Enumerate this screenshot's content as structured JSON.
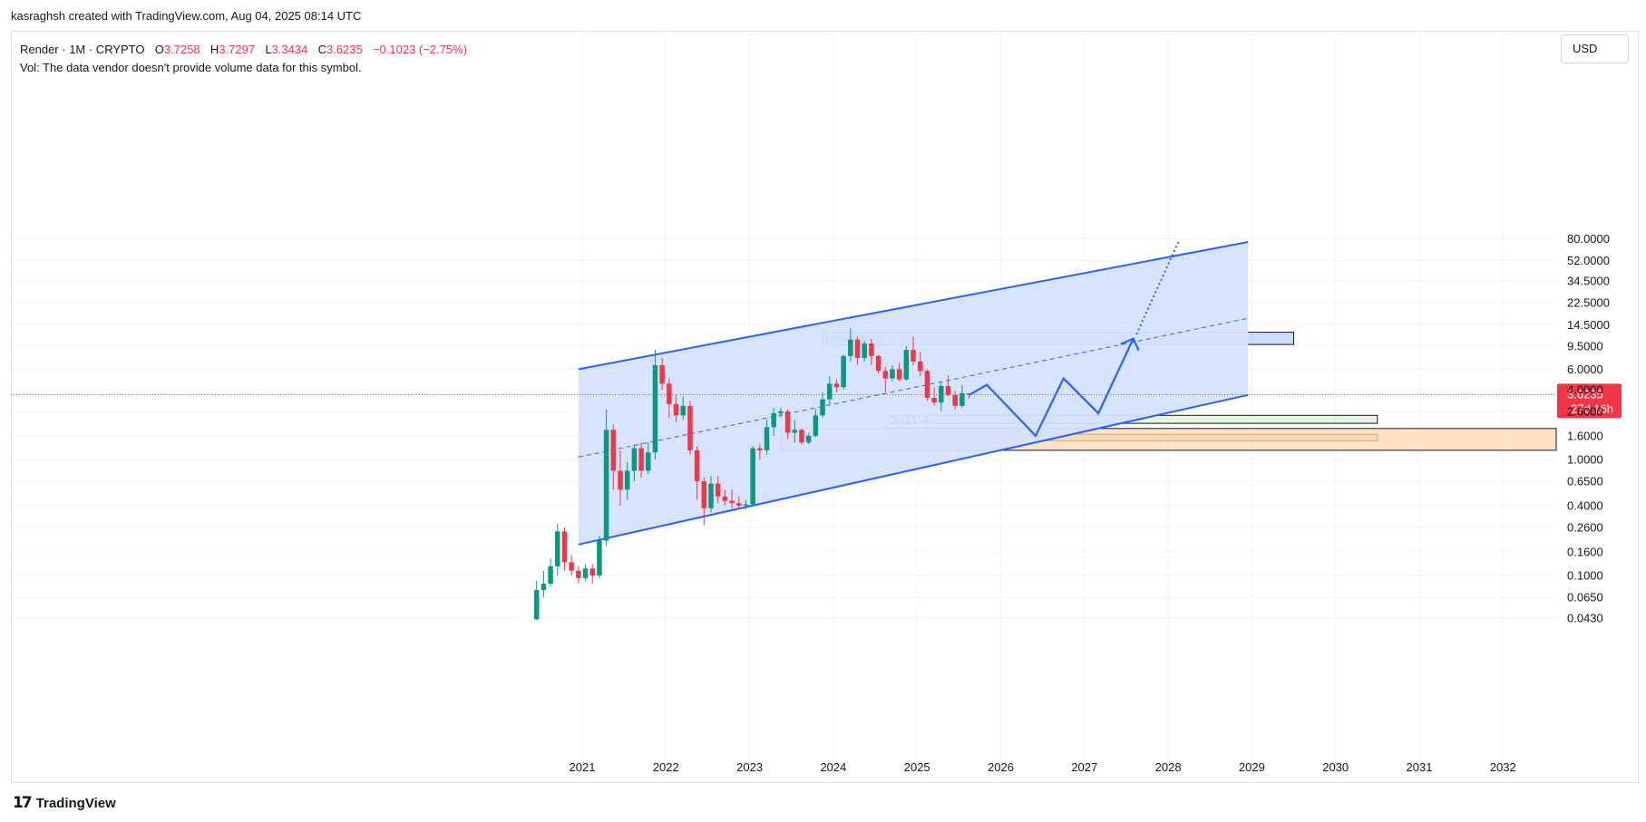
{
  "header": {
    "credit": "kasraghsh created with TradingView.com, Aug 04, 2025 08:14 UTC"
  },
  "legend": {
    "symbol": "Render · 1M · CRYPTO",
    "o_label": "O",
    "o_value": "3.7258",
    "h_label": "H",
    "h_value": "3.7297",
    "l_label": "L",
    "l_value": "3.3434",
    "c_label": "C",
    "c_value": "3.6235",
    "change": "−0.1023 (−2.75%)",
    "vol": "Vol: The data vendor doesn't provide volume data for this symbol."
  },
  "currency": "USD",
  "footer": {
    "brand": "TradingView",
    "logo_icon": "tradingview-logo-icon"
  },
  "colors": {
    "up": "#089981",
    "down": "#f23645",
    "channel": "#2962ff",
    "channel_fill": "#d6e2fd",
    "price_tag": "#f23645"
  },
  "chart_data": {
    "type": "candlestick",
    "scale": "log",
    "ylim": [
      0.035,
      100
    ],
    "xlim": [
      "2020-01",
      "2032-12"
    ],
    "y_ticks": [
      "80.0000",
      "52.0000",
      "34.5000",
      "22.5000",
      "14.5000",
      "9.5000",
      "6.0000",
      "4.0000",
      "2.6000",
      "1.6000",
      "1.0000",
      "0.6500",
      "0.4000",
      "0.2600",
      "0.1600",
      "0.1000",
      "0.0650",
      "0.0430"
    ],
    "x_ticks": [
      "2021",
      "2022",
      "2023",
      "2024",
      "2025",
      "2026",
      "2027",
      "2028",
      "2029",
      "2030",
      "2031",
      "2032"
    ],
    "last_price": {
      "value": "3.6235",
      "countdown": "27d 16h"
    },
    "candles": [
      {
        "t": "2020-06",
        "o": 0.042,
        "h": 0.09,
        "l": 0.041,
        "c": 0.075
      },
      {
        "t": "2020-07",
        "o": 0.075,
        "h": 0.11,
        "l": 0.065,
        "c": 0.085
      },
      {
        "t": "2020-08",
        "o": 0.085,
        "h": 0.14,
        "l": 0.08,
        "c": 0.12
      },
      {
        "t": "2020-09",
        "o": 0.12,
        "h": 0.28,
        "l": 0.1,
        "c": 0.24
      },
      {
        "t": "2020-10",
        "o": 0.24,
        "h": 0.26,
        "l": 0.11,
        "c": 0.13
      },
      {
        "t": "2020-11",
        "o": 0.13,
        "h": 0.15,
        "l": 0.1,
        "c": 0.11
      },
      {
        "t": "2020-12",
        "o": 0.11,
        "h": 0.12,
        "l": 0.085,
        "c": 0.095
      },
      {
        "t": "2021-01",
        "o": 0.095,
        "h": 0.125,
        "l": 0.09,
        "c": 0.115
      },
      {
        "t": "2021-02",
        "o": 0.115,
        "h": 0.125,
        "l": 0.085,
        "c": 0.1
      },
      {
        "t": "2021-03",
        "o": 0.1,
        "h": 0.22,
        "l": 0.095,
        "c": 0.2
      },
      {
        "t": "2021-04",
        "o": 0.2,
        "h": 2.7,
        "l": 0.18,
        "c": 1.8
      },
      {
        "t": "2021-05",
        "o": 1.8,
        "h": 2.0,
        "l": 0.55,
        "c": 0.8
      },
      {
        "t": "2021-06",
        "o": 0.8,
        "h": 1.2,
        "l": 0.4,
        "c": 0.55
      },
      {
        "t": "2021-07",
        "o": 0.55,
        "h": 0.95,
        "l": 0.45,
        "c": 0.8
      },
      {
        "t": "2021-08",
        "o": 0.8,
        "h": 1.35,
        "l": 0.65,
        "c": 1.25
      },
      {
        "t": "2021-09",
        "o": 1.25,
        "h": 1.4,
        "l": 0.7,
        "c": 0.8
      },
      {
        "t": "2021-10",
        "o": 0.8,
        "h": 1.4,
        "l": 0.75,
        "c": 1.15
      },
      {
        "t": "2021-11",
        "o": 1.15,
        "h": 8.8,
        "l": 1.0,
        "c": 6.5
      },
      {
        "t": "2021-12",
        "o": 6.5,
        "h": 7.5,
        "l": 4.0,
        "c": 4.5
      },
      {
        "t": "2022-01",
        "o": 4.5,
        "h": 5.0,
        "l": 2.3,
        "c": 3.0
      },
      {
        "t": "2022-02",
        "o": 3.0,
        "h": 3.6,
        "l": 2.1,
        "c": 2.4
      },
      {
        "t": "2022-03",
        "o": 2.4,
        "h": 3.5,
        "l": 2.2,
        "c": 2.9
      },
      {
        "t": "2022-04",
        "o": 2.9,
        "h": 3.2,
        "l": 1.1,
        "c": 1.2
      },
      {
        "t": "2022-05",
        "o": 1.2,
        "h": 1.3,
        "l": 0.45,
        "c": 0.65
      },
      {
        "t": "2022-06",
        "o": 0.65,
        "h": 0.7,
        "l": 0.27,
        "c": 0.38
      },
      {
        "t": "2022-07",
        "o": 0.38,
        "h": 0.72,
        "l": 0.35,
        "c": 0.62
      },
      {
        "t": "2022-08",
        "o": 0.62,
        "h": 0.72,
        "l": 0.42,
        "c": 0.48
      },
      {
        "t": "2022-09",
        "o": 0.48,
        "h": 0.55,
        "l": 0.4,
        "c": 0.44
      },
      {
        "t": "2022-10",
        "o": 0.44,
        "h": 0.55,
        "l": 0.38,
        "c": 0.42
      },
      {
        "t": "2022-11",
        "o": 0.42,
        "h": 0.48,
        "l": 0.37,
        "c": 0.4
      },
      {
        "t": "2022-12",
        "o": 0.4,
        "h": 0.45,
        "l": 0.37,
        "c": 0.41
      },
      {
        "t": "2023-01",
        "o": 0.41,
        "h": 1.3,
        "l": 0.39,
        "c": 1.25
      },
      {
        "t": "2023-02",
        "o": 1.25,
        "h": 1.35,
        "l": 1.0,
        "c": 1.2
      },
      {
        "t": "2023-03",
        "o": 1.2,
        "h": 2.2,
        "l": 1.1,
        "c": 1.9
      },
      {
        "t": "2023-04",
        "o": 1.9,
        "h": 2.8,
        "l": 1.6,
        "c": 2.5
      },
      {
        "t": "2023-05",
        "o": 2.5,
        "h": 2.8,
        "l": 2.3,
        "c": 2.6
      },
      {
        "t": "2023-06",
        "o": 2.6,
        "h": 2.7,
        "l": 1.5,
        "c": 1.7
      },
      {
        "t": "2023-07",
        "o": 1.7,
        "h": 2.2,
        "l": 1.4,
        "c": 1.8
      },
      {
        "t": "2023-08",
        "o": 1.8,
        "h": 1.85,
        "l": 1.35,
        "c": 1.4
      },
      {
        "t": "2023-09",
        "o": 1.4,
        "h": 1.7,
        "l": 1.35,
        "c": 1.6
      },
      {
        "t": "2023-10",
        "o": 1.6,
        "h": 2.7,
        "l": 1.55,
        "c": 2.4
      },
      {
        "t": "2023-11",
        "o": 2.4,
        "h": 3.8,
        "l": 2.3,
        "c": 3.3
      },
      {
        "t": "2023-12",
        "o": 3.3,
        "h": 5.2,
        "l": 3.0,
        "c": 4.5
      },
      {
        "t": "2024-01",
        "o": 4.5,
        "h": 4.9,
        "l": 3.8,
        "c": 4.2
      },
      {
        "t": "2024-02",
        "o": 4.2,
        "h": 8.0,
        "l": 4.0,
        "c": 7.8
      },
      {
        "t": "2024-03",
        "o": 7.8,
        "h": 13.5,
        "l": 7.0,
        "c": 10.8
      },
      {
        "t": "2024-04",
        "o": 10.8,
        "h": 11.5,
        "l": 6.5,
        "c": 7.5
      },
      {
        "t": "2024-05",
        "o": 7.5,
        "h": 10.5,
        "l": 7.0,
        "c": 10.0
      },
      {
        "t": "2024-06",
        "o": 10.0,
        "h": 11.0,
        "l": 6.5,
        "c": 7.8
      },
      {
        "t": "2024-07",
        "o": 7.8,
        "h": 8.0,
        "l": 5.5,
        "c": 5.8
      },
      {
        "t": "2024-08",
        "o": 5.8,
        "h": 6.3,
        "l": 3.8,
        "c": 5.0
      },
      {
        "t": "2024-09",
        "o": 5.0,
        "h": 6.5,
        "l": 4.7,
        "c": 6.0
      },
      {
        "t": "2024-10",
        "o": 6.0,
        "h": 6.8,
        "l": 4.7,
        "c": 4.9
      },
      {
        "t": "2024-11",
        "o": 4.9,
        "h": 9.5,
        "l": 4.8,
        "c": 8.8
      },
      {
        "t": "2024-12",
        "o": 8.8,
        "h": 11.5,
        "l": 6.5,
        "c": 7.0
      },
      {
        "t": "2025-01",
        "o": 7.0,
        "h": 8.5,
        "l": 5.2,
        "c": 5.8
      },
      {
        "t": "2025-02",
        "o": 5.8,
        "h": 6.0,
        "l": 3.2,
        "c": 3.4
      },
      {
        "t": "2025-03",
        "o": 3.4,
        "h": 4.2,
        "l": 2.9,
        "c": 3.1
      },
      {
        "t": "2025-04",
        "o": 3.1,
        "h": 4.6,
        "l": 2.6,
        "c": 4.3
      },
      {
        "t": "2025-05",
        "o": 4.3,
        "h": 5.3,
        "l": 3.5,
        "c": 3.6
      },
      {
        "t": "2025-06",
        "o": 3.6,
        "h": 3.9,
        "l": 2.7,
        "c": 2.9
      },
      {
        "t": "2025-07",
        "o": 2.9,
        "h": 4.4,
        "l": 2.8,
        "c": 3.73
      },
      {
        "t": "2025-08",
        "o": 3.7258,
        "h": 3.7297,
        "l": 3.3434,
        "c": 3.6235
      }
    ],
    "annotations": {
      "channel": {
        "upper": [
          [
            "2020-12-15",
            6.0
          ],
          [
            "2028-12-15",
            75.0
          ]
        ],
        "lower": [
          [
            "2020-12-15",
            0.185
          ],
          [
            "2028-12-15",
            3.6
          ]
        ],
        "median": [
          [
            "2020-12-15",
            1.05
          ],
          [
            "2028-12-15",
            16.5
          ]
        ]
      },
      "boxes": [
        {
          "label": "Mansha",
          "from": "2023-11-15",
          "to": "2029-07-01",
          "top": 12.5,
          "bottom": 9.8,
          "fill": "#bbd0fb"
        },
        {
          "label": "STEP 4",
          "from": "2024-09-01",
          "to": "2030-07-01",
          "top": 2.4,
          "bottom": 2.05,
          "fill": "#e3f0dc"
        },
        {
          "label": "STEP 5",
          "from": "2024-09-01",
          "to": "2030-07-01",
          "top": 1.65,
          "bottom": 1.45,
          "fill": "#dcc9a6"
        },
        {
          "label": "",
          "from": "2023-05-15",
          "to": "2032-12-31",
          "top": 1.85,
          "bottom": 1.2,
          "fill": "#fdd9b0"
        }
      ],
      "projection": [
        [
          "2025-08-15",
          3.6
        ],
        [
          "2025-11-01",
          4.4
        ],
        [
          "2026-06-01",
          1.6
        ],
        [
          "2026-10-01",
          5.0
        ],
        [
          "2027-03-01",
          2.5
        ],
        [
          "2027-08-01",
          11.0
        ]
      ],
      "projection_dotted": [
        [
          "2027-08-15",
          12.0
        ],
        [
          "2028-02-15",
          75.0
        ]
      ]
    }
  }
}
